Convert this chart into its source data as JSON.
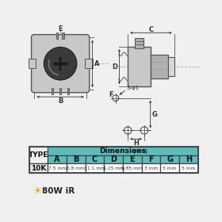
{
  "bg_color": "#f0f0f0",
  "table_header_color": "#5bbcbc",
  "table_border_color": "#444444",
  "title": "Dimensions",
  "title_mm": "(mm)",
  "type_label": "TYPE",
  "type_value": "10K",
  "columns": [
    "A",
    "B",
    "C",
    "D",
    "E",
    "F",
    "G",
    "H"
  ],
  "values": [
    "7.5 mm",
    "6.8 mm",
    "11.1 mm",
    "5.25 mm",
    "0.85 mm",
    "3 mm",
    "5 mm",
    "5 mm"
  ],
  "diagram_bg": "#d8d8d8",
  "component_dark": "#555555",
  "component_mid": "#888888",
  "component_light": "#bbbbbb",
  "line_color": "#333333",
  "wire_color": "#777777",
  "body_fill": "#c8c8c8",
  "body_fill2": "#b0b0b0"
}
